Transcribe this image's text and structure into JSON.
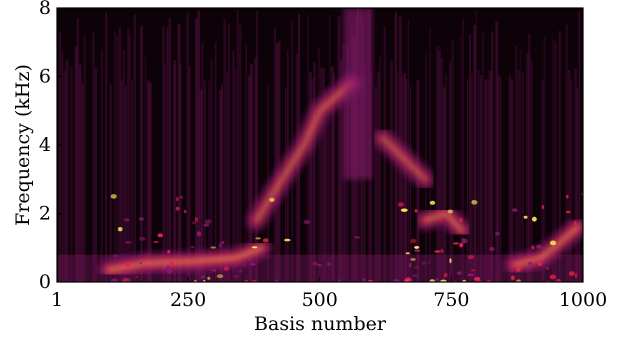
{
  "chart_data": {
    "type": "heatmap",
    "title": "",
    "xlabel": "Basis number",
    "ylabel": "Frequency (kHz)",
    "xlim": [
      1,
      1000
    ],
    "ylim": [
      0,
      8
    ],
    "x_ticks": [
      1,
      250,
      500,
      750,
      1000
    ],
    "x_tick_labels": [
      "1",
      "250",
      "500",
      "750",
      "1000"
    ],
    "y_ticks": [
      0,
      2,
      4,
      6,
      8
    ],
    "y_tick_labels": [
      "0",
      "2",
      "4",
      "6",
      "8"
    ],
    "colormap": "inferno-like",
    "colors": {
      "low": "#0d0208",
      "mid": "#8a1a6e",
      "high": "#e8204a",
      "peak": "#ffe45a"
    },
    "grid": false,
    "formants": [
      {
        "x": [
          100,
          170,
          260,
          340,
          390
        ],
        "y": [
          0.35,
          0.55,
          0.6,
          0.7,
          1.0
        ],
        "intensity": 0.95
      },
      {
        "x": [
          380,
          420,
          470,
          500,
          530,
          560
        ],
        "y": [
          1.8,
          2.8,
          4.0,
          5.0,
          5.4,
          5.8
        ],
        "intensity": 0.75
      },
      {
        "x": [
          620,
          660,
          700
        ],
        "y": [
          4.2,
          3.6,
          3.0
        ],
        "intensity": 0.7
      },
      {
        "x": [
          700,
          740,
          770
        ],
        "y": [
          1.8,
          2.0,
          1.5
        ],
        "intensity": 0.85
      },
      {
        "x": [
          870,
          920,
          960,
          990
        ],
        "y": [
          0.5,
          0.7,
          1.2,
          1.6
        ],
        "intensity": 0.9
      }
    ]
  }
}
